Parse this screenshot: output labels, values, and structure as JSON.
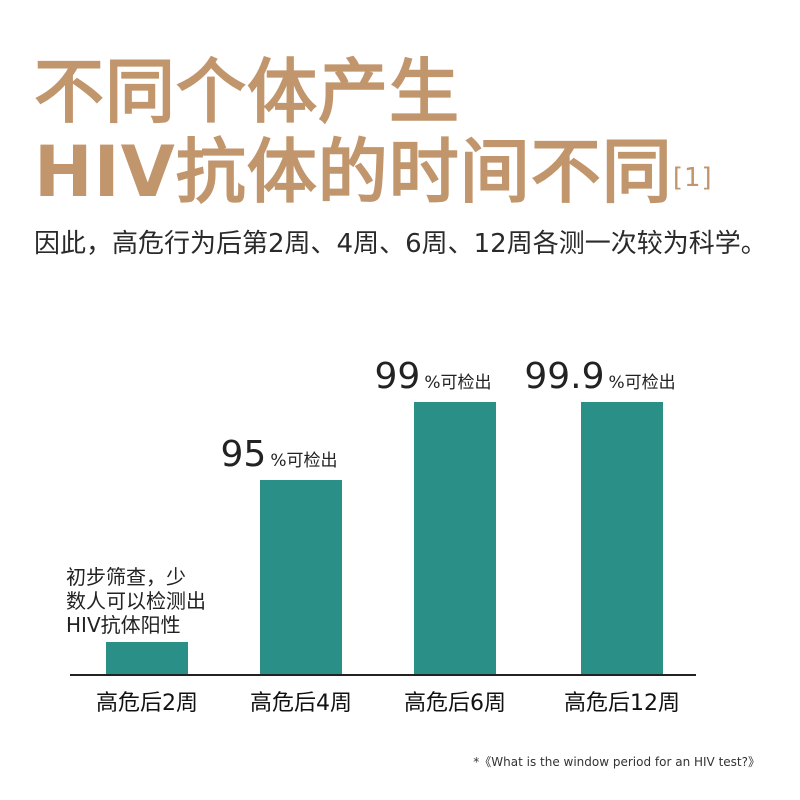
{
  "title": {
    "line1": "不同个体产生",
    "line2": "HIV抗体的时间不同",
    "ref": "[1]"
  },
  "subtitle": "因此，高危行为后第2周、4周、6周、12周各测一次较为科学。",
  "footnote": "*《What is the window period for an HIV test?》",
  "colors": {
    "title": "#c1966c",
    "bar": "#2a8f87",
    "axis": "#222222"
  },
  "chart_data": {
    "type": "bar",
    "categories": [
      "高危后2周",
      "高危后4周",
      "高危后6周",
      "高危后12周"
    ],
    "values": [
      8,
      95,
      99,
      99.9
    ],
    "value_labels": [
      {
        "big": "",
        "small": ""
      },
      {
        "big": "95",
        "small": "%可检出"
      },
      {
        "big": "99",
        "small": "%可检出"
      },
      {
        "big": "99.9",
        "small": "%可检出"
      }
    ],
    "annotation": [
      "初步筛查，少",
      "数人可以检测出",
      "HIV抗体阳性"
    ]
  }
}
